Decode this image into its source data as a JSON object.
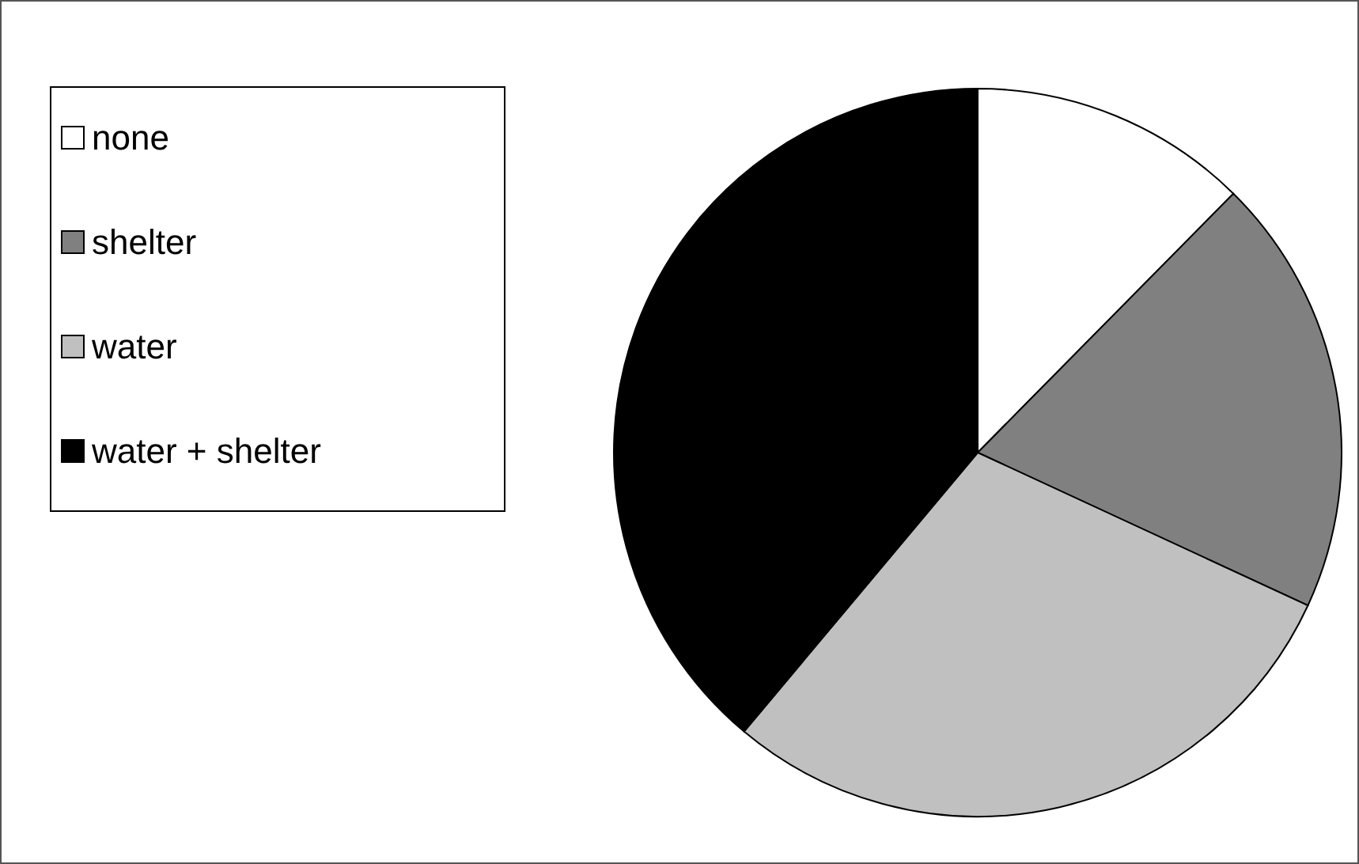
{
  "chart_data": {
    "type": "pie",
    "categories": [
      "none",
      "shelter",
      "water",
      "water + shelter"
    ],
    "values": [
      12.4,
      19.5,
      29.2,
      38.9
    ],
    "colors": [
      "#ffffff",
      "#808080",
      "#c0c0c0",
      "#000000"
    ],
    "legend": "top left"
  }
}
